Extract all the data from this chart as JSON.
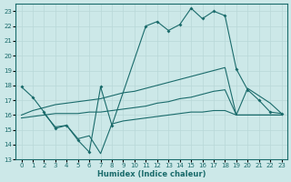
{
  "xlabel": "Humidex (Indice chaleur)",
  "bg_color": "#cce8e8",
  "grid_color": "#d4e8e8",
  "line_color": "#1a6b6b",
  "xlim": [
    -0.5,
    23.5
  ],
  "ylim": [
    13,
    23.5
  ],
  "yticks": [
    13,
    14,
    15,
    16,
    17,
    18,
    19,
    20,
    21,
    22,
    23
  ],
  "xticks": [
    0,
    1,
    2,
    3,
    4,
    5,
    6,
    7,
    8,
    9,
    10,
    11,
    12,
    13,
    14,
    15,
    16,
    17,
    18,
    19,
    20,
    21,
    22,
    23
  ],
  "lines": [
    {
      "x": [
        0,
        1,
        2,
        3,
        4,
        5,
        6,
        7,
        8,
        11,
        12,
        13,
        14,
        15,
        16,
        17,
        18,
        19,
        20,
        21,
        22,
        23
      ],
      "y": [
        17.9,
        17.2,
        16.2,
        15.1,
        15.3,
        14.3,
        13.5,
        17.9,
        15.3,
        22.0,
        22.3,
        21.7,
        22.1,
        23.2,
        22.5,
        23.0,
        22.7,
        19.1,
        17.7,
        17.0,
        16.2,
        16.1
      ],
      "marker": true
    },
    {
      "x": [
        0,
        1,
        2,
        3,
        4,
        5,
        6,
        7,
        8,
        9,
        10,
        11,
        12,
        13,
        14,
        15,
        16,
        17,
        18,
        19,
        20,
        21,
        22,
        23
      ],
      "y": [
        16.0,
        16.3,
        16.5,
        16.7,
        16.8,
        16.9,
        17.0,
        17.1,
        17.3,
        17.5,
        17.6,
        17.8,
        18.0,
        18.2,
        18.4,
        18.6,
        18.8,
        19.0,
        19.2,
        16.0,
        17.8,
        17.3,
        16.8,
        16.1
      ],
      "marker": false
    },
    {
      "x": [
        0,
        1,
        2,
        3,
        4,
        5,
        6,
        7,
        8,
        9,
        10,
        11,
        12,
        13,
        14,
        15,
        16,
        17,
        18,
        19,
        20,
        21,
        22,
        23
      ],
      "y": [
        15.8,
        15.9,
        16.0,
        16.1,
        16.1,
        16.1,
        16.2,
        16.2,
        16.3,
        16.4,
        16.5,
        16.6,
        16.8,
        16.9,
        17.1,
        17.2,
        17.4,
        17.6,
        17.7,
        16.0,
        16.0,
        16.0,
        16.0,
        16.0
      ],
      "marker": false
    },
    {
      "x": [
        2,
        3,
        4,
        5,
        6,
        7,
        8,
        9,
        10,
        11,
        12,
        13,
        14,
        15,
        16,
        17,
        18,
        19,
        20,
        21,
        22,
        23
      ],
      "y": [
        16.1,
        15.2,
        15.3,
        14.4,
        14.6,
        13.4,
        15.4,
        15.6,
        15.7,
        15.8,
        15.9,
        16.0,
        16.1,
        16.2,
        16.2,
        16.3,
        16.3,
        16.0,
        16.0,
        16.0,
        16.0,
        16.0
      ],
      "marker": false
    }
  ]
}
